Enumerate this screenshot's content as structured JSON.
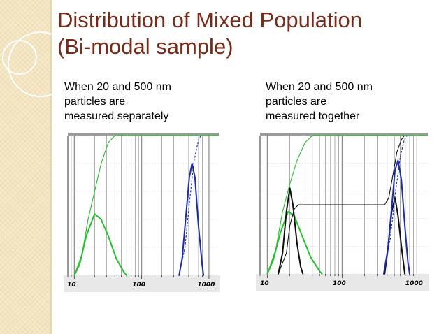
{
  "slide": {
    "title_line1": "Distribution of Mixed Population",
    "title_line2": "(Bi-modal sample)"
  },
  "captions": {
    "left": [
      "When 20 and 500 nm",
      "particles are",
      "measured separately"
    ],
    "right": [
      "When 20 and 500 nm",
      "particles are",
      "measured together"
    ]
  },
  "colors": {
    "title": "#7a2a16",
    "green": "#22c32a",
    "blue": "#1a2bb8",
    "black": "#111111",
    "grid": "#8a8a8a",
    "axis_bg": "#e8e8e8",
    "strip": "#f6e9c8"
  },
  "chart_data": [
    {
      "type": "line",
      "scale": "log-x",
      "xlim": [
        8,
        1400
      ],
      "ylim": [
        0,
        100
      ],
      "x_tick_labels": [
        "10",
        "100",
        "1000"
      ],
      "x_ticks": [
        10,
        100,
        1000
      ],
      "series": [
        {
          "color": "green",
          "kind": "cumulative",
          "dash": false,
          "points": [
            [
              10,
              0
            ],
            [
              13,
              15
            ],
            [
              16,
              40
            ],
            [
              20,
              60
            ],
            [
              25,
              80
            ],
            [
              32,
              95
            ],
            [
              40,
              100
            ],
            [
              1400,
              100
            ]
          ]
        },
        {
          "color": "green",
          "kind": "distribution",
          "dash": false,
          "points": [
            [
              10,
              0
            ],
            [
              12,
              8
            ],
            [
              15,
              28
            ],
            [
              20,
              44
            ],
            [
              25,
              40
            ],
            [
              32,
              28
            ],
            [
              42,
              12
            ],
            [
              55,
              2
            ],
            [
              60,
              0
            ]
          ]
        },
        {
          "color": "blue",
          "kind": "distribution",
          "dash": false,
          "points": [
            [
              360,
              0
            ],
            [
              400,
              12
            ],
            [
              450,
              40
            ],
            [
              510,
              70
            ],
            [
              560,
              80
            ],
            [
              620,
              70
            ],
            [
              700,
              35
            ],
            [
              790,
              8
            ],
            [
              830,
              0
            ]
          ]
        },
        {
          "color": "blue",
          "kind": "cumulative",
          "dash": true,
          "points": [
            [
              360,
              0
            ],
            [
              440,
              20
            ],
            [
              520,
              55
            ],
            [
              600,
              82
            ],
            [
              700,
              97
            ],
            [
              760,
              100
            ]
          ]
        }
      ]
    },
    {
      "type": "line",
      "scale": "log-x",
      "xlim": [
        8,
        1400
      ],
      "ylim": [
        0,
        100
      ],
      "x_tick_labels": [
        "10",
        "100",
        "1000"
      ],
      "x_ticks": [
        10,
        100,
        1000
      ],
      "series": [
        {
          "color": "green",
          "kind": "cumulative",
          "dash": false,
          "points": [
            [
              10,
              0
            ],
            [
              13,
              18
            ],
            [
              16,
              45
            ],
            [
              20,
              65
            ],
            [
              25,
              82
            ],
            [
              32,
              95
            ],
            [
              40,
              100
            ],
            [
              1400,
              100
            ]
          ]
        },
        {
          "color": "green",
          "kind": "distribution",
          "dash": false,
          "points": [
            [
              10,
              0
            ],
            [
              12,
              10
            ],
            [
              15,
              30
            ],
            [
              19,
              45
            ],
            [
              23,
              42
            ],
            [
              29,
              28
            ],
            [
              38,
              12
            ],
            [
              50,
              2
            ],
            [
              54,
              0
            ]
          ]
        },
        {
          "color": "black",
          "kind": "distribution",
          "dash": false,
          "points": [
            [
              14,
              0
            ],
            [
              16,
              15
            ],
            [
              18,
              45
            ],
            [
              20,
              62
            ],
            [
              22,
              50
            ],
            [
              25,
              22
            ],
            [
              28,
              5
            ],
            [
              30,
              0
            ]
          ]
        },
        {
          "color": "black",
          "kind": "cumulative",
          "dash": false,
          "points": [
            [
              14,
              0
            ],
            [
              18,
              15
            ],
            [
              20,
              35
            ],
            [
              23,
              47
            ],
            [
              26,
              50
            ],
            [
              370,
              50
            ],
            [
              420,
              55
            ],
            [
              480,
              72
            ],
            [
              540,
              88
            ],
            [
              620,
              97
            ],
            [
              680,
              100
            ]
          ]
        },
        {
          "color": "black",
          "kind": "distribution",
          "dash": false,
          "points": [
            [
              370,
              0
            ],
            [
              410,
              18
            ],
            [
              460,
              45
            ],
            [
              510,
              55
            ],
            [
              560,
              42
            ],
            [
              620,
              20
            ],
            [
              690,
              0
            ]
          ]
        },
        {
          "color": "blue",
          "kind": "distribution",
          "dash": false,
          "points": [
            [
              360,
              0
            ],
            [
              410,
              18
            ],
            [
              460,
              48
            ],
            [
              510,
              75
            ],
            [
              560,
              82
            ],
            [
              620,
              68
            ],
            [
              690,
              35
            ],
            [
              760,
              8
            ],
            [
              800,
              0
            ]
          ]
        },
        {
          "color": "blue",
          "kind": "cumulative",
          "dash": true,
          "points": [
            [
              360,
              0
            ],
            [
              440,
              25
            ],
            [
              520,
              60
            ],
            [
              600,
              85
            ],
            [
              680,
              97
            ],
            [
              740,
              100
            ]
          ]
        }
      ]
    }
  ]
}
